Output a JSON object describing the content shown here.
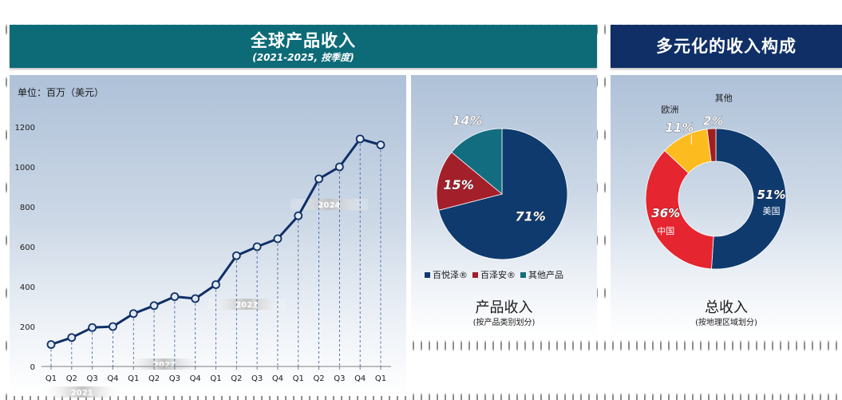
{
  "header_left": {
    "title": "全球产品收入",
    "subtitle": "(2021-2025, 按季度)"
  },
  "header_right": {
    "title": "多元化的收入构成"
  },
  "pie_caption": {
    "title": "产品收入",
    "subtitle": "(按产品类别划分)"
  },
  "donut_caption": {
    "title": "总收入",
    "subtitle": "(按地理区域划分)"
  },
  "colors": {
    "teal_banner": "#0d6b78",
    "navy_banner": "#0f2f66",
    "line": "#0f2f66",
    "navy": "#0f3a6e",
    "red": "#a31f2a",
    "teal": "#136d80",
    "donut_red": "#e5252f",
    "donut_yellow": "#fcbc1f",
    "donut_darkred": "#a01e22"
  },
  "chart_data": [
    {
      "type": "line",
      "title": "全球产品收入",
      "unit_label": "单位：百万（美元）",
      "categories": [
        "Q1",
        "Q2",
        "Q3",
        "Q4",
        "Q1",
        "Q2",
        "Q3",
        "Q4",
        "Q1",
        "Q2",
        "Q3",
        "Q4",
        "Q1",
        "Q2",
        "Q3",
        "Q4",
        "Q1"
      ],
      "values": [
        110,
        145,
        195,
        200,
        265,
        305,
        350,
        340,
        410,
        555,
        600,
        640,
        755,
        940,
        1000,
        1140,
        1110
      ],
      "year_labels": [
        {
          "label": "2021",
          "start": 0,
          "end": 3
        },
        {
          "label": "2022",
          "start": 4,
          "end": 7
        },
        {
          "label": "2023",
          "start": 8,
          "end": 11
        },
        {
          "label": "2024",
          "start": 12,
          "end": 15
        }
      ],
      "ylim": [
        0,
        1200
      ],
      "yticks": [
        0,
        200,
        400,
        600,
        800,
        1000,
        1200
      ],
      "grid": false
    },
    {
      "type": "pie",
      "title": "产品收入",
      "slices": [
        {
          "name": "百悦泽®",
          "value": 71,
          "label": "71%"
        },
        {
          "name": "百泽安®",
          "value": 15,
          "label": "15%"
        },
        {
          "name": "其他产品",
          "value": 14,
          "label": "14%"
        }
      ],
      "legend": "bottom"
    },
    {
      "type": "pie",
      "variant": "donut",
      "title": "总收入",
      "slices": [
        {
          "name": "美国",
          "value": 51,
          "label": "51%"
        },
        {
          "name": "中国",
          "value": 36,
          "label": "36%"
        },
        {
          "name": "欧洲",
          "value": 11,
          "label": "11%"
        },
        {
          "name": "其他",
          "value": 2,
          "label": "2%"
        }
      ]
    }
  ]
}
